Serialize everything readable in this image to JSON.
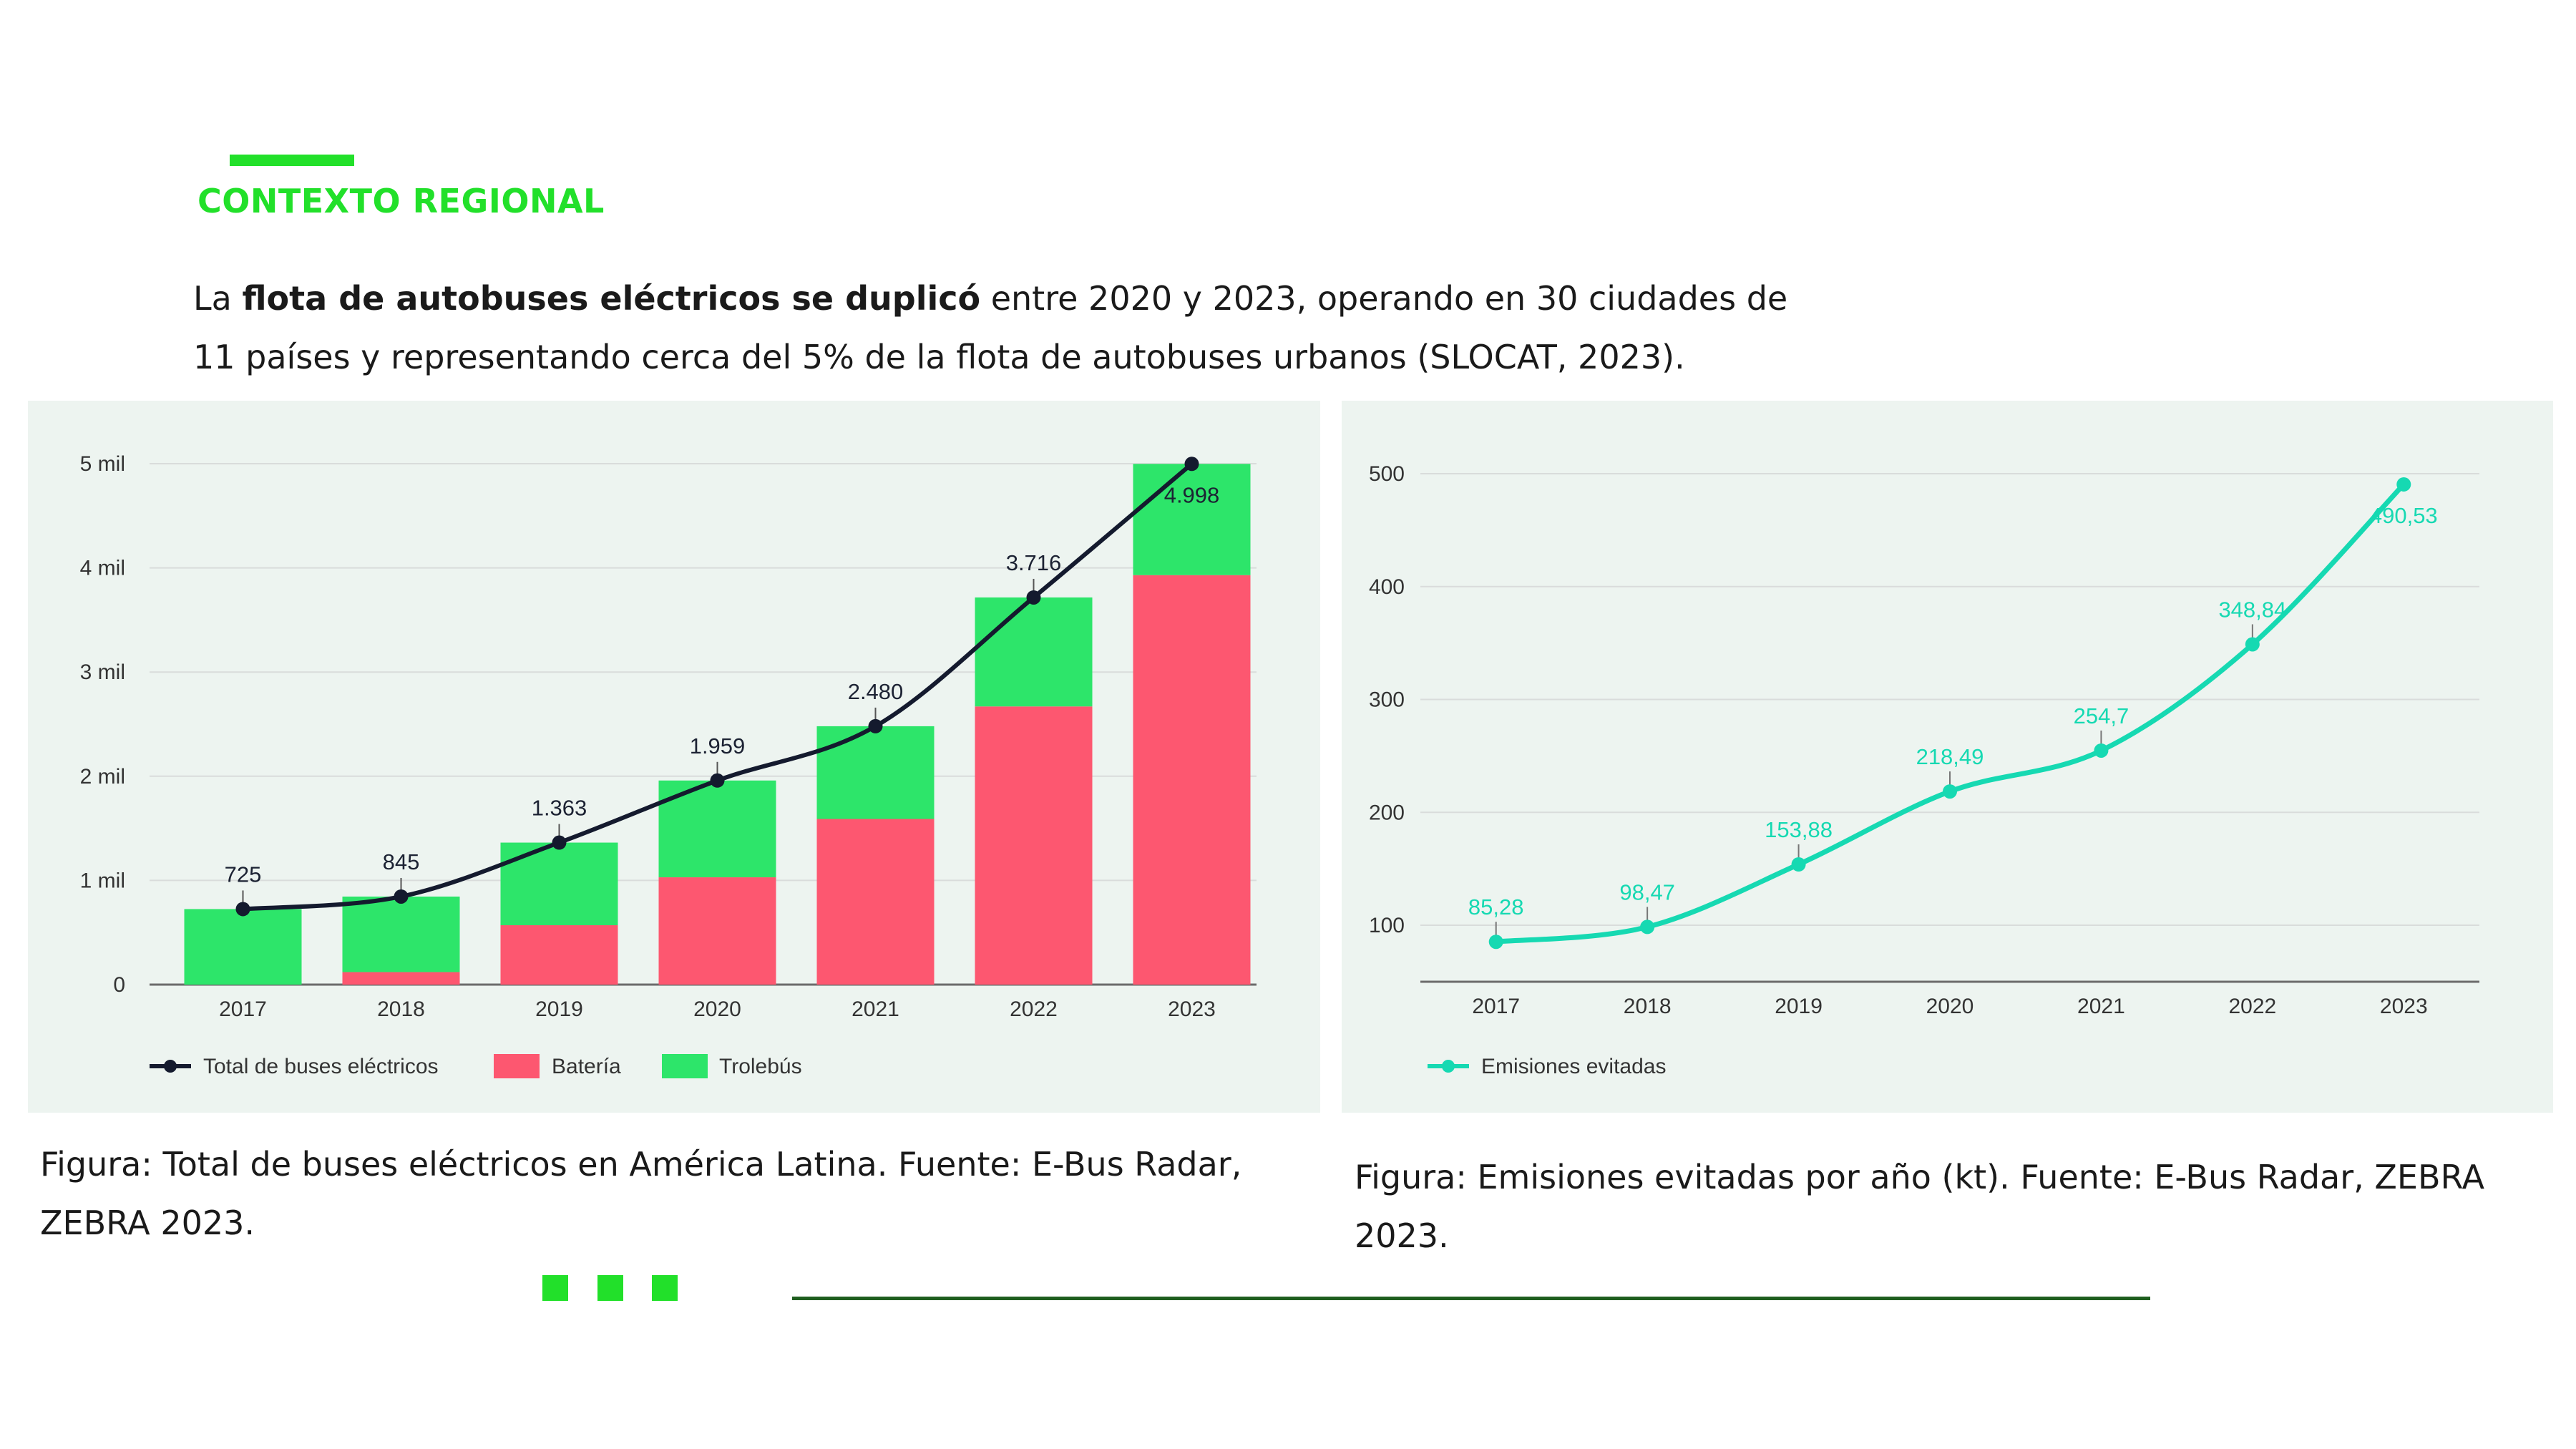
{
  "header": {
    "section_title": "CONTEXTO REGIONAL",
    "intro_prefix": "La ",
    "intro_bold": "flota de autobuses eléctricos se duplicó",
    "intro_rest": " entre 2020 y 2023, operando en 30 ciudades de 11 países y representando cerca del 5% de la flota de autobuses urbanos (SLOCAT, 2023)."
  },
  "captions": {
    "left": "Figura: Total de buses eléctricos en América Latina. Fuente: E-Bus Radar, ZEBRA 2023.",
    "right": "Figura: Emisiones evitadas por año (kt). Fuente: E-Bus Radar, ZEBRA 2023."
  },
  "colors": {
    "accent": "#22e02a",
    "battery": "#fd5770",
    "trolley": "#2de56a",
    "total_line": "#141a2e",
    "emissions": "#16d9b2",
    "panel_bg": "#edf4f0",
    "rule": "#1f5e1f"
  },
  "chart_data": [
    {
      "type": "bar",
      "stacked": true,
      "categories": [
        "2017",
        "2018",
        "2019",
        "2020",
        "2021",
        "2022",
        "2023"
      ],
      "series": [
        {
          "name": "Batería",
          "values": [
            0,
            120,
            570,
            1030,
            1590,
            2670,
            3930
          ]
        },
        {
          "name": "Trolebús",
          "values": [
            725,
            725,
            793,
            929,
            890,
            1046,
            1068
          ]
        }
      ],
      "line": {
        "name": "Total de buses eléctricos",
        "values": [
          725,
          845,
          1363,
          1959,
          2480,
          3716,
          4998
        ],
        "labels": [
          "725",
          "845",
          "1.363",
          "1.959",
          "2.480",
          "3.716",
          "4.998"
        ]
      },
      "ylim": [
        0,
        5000
      ],
      "yticks": [
        0,
        1000,
        2000,
        3000,
        4000,
        5000
      ],
      "ytick_labels": [
        "0",
        "1 mil",
        "2 mil",
        "3 mil",
        "4 mil",
        "5 mil"
      ],
      "grid": true,
      "legend": "bottom-left",
      "legend_items": [
        "Total de buses eléctricos",
        "Batería",
        "Trolebús"
      ]
    },
    {
      "type": "line",
      "categories": [
        "2017",
        "2018",
        "2019",
        "2020",
        "2021",
        "2022",
        "2023"
      ],
      "series": [
        {
          "name": "Emisiones evitadas",
          "values": [
            85.28,
            98.47,
            153.88,
            218.49,
            254.7,
            348.84,
            490.53
          ],
          "labels": [
            "85,28",
            "98,47",
            "153,88",
            "218,49",
            "254,7",
            "348,84",
            "490,53"
          ]
        }
      ],
      "ylim": [
        47,
        500
      ],
      "yticks": [
        100,
        200,
        300,
        400,
        500
      ],
      "ytick_labels": [
        "100",
        "200",
        "300",
        "400",
        "500"
      ],
      "grid": true,
      "legend": "bottom-left",
      "legend_items": [
        "Emisiones evitadas"
      ]
    }
  ]
}
